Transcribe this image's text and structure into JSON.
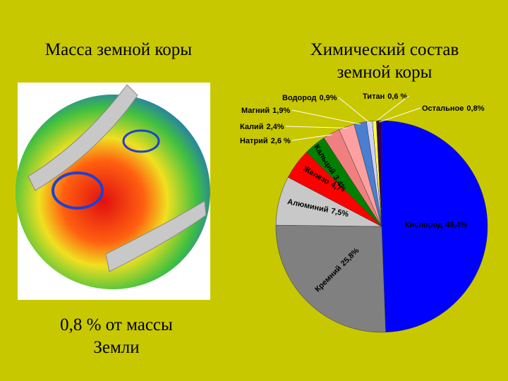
{
  "slide": {
    "left_title": "Масса земной коры",
    "caption_line1": "0,8 % от массы",
    "caption_line2": "Земли"
  },
  "chart_data": {
    "type": "pie",
    "title_line1": "Химический состав",
    "title_line2": "земной коры",
    "categories": [
      "Кислород",
      "Кремний",
      "Алюминий",
      "Железо",
      "Кальций",
      "Натрий",
      "Калий",
      "Магний",
      "Водород",
      "Титан",
      "Остальное"
    ],
    "values": [
      49.4,
      25.8,
      7.5,
      4.7,
      3.4,
      2.6,
      2.4,
      1.9,
      0.9,
      0.6,
      0.8
    ],
    "value_labels": [
      "49,4%",
      "25,8%",
      "7,5%",
      "4,7",
      "3,4%",
      "2,6 %",
      "2,4%",
      "1,9%",
      "0,9%",
      "0,6 %",
      "0,8%"
    ],
    "colors": [
      "#0000ff",
      "#808080",
      "#c8c8c8",
      "#ff0000",
      "#008000",
      "#f08080",
      "#ffa0a0",
      "#4a7fd0",
      "#d0d0ff",
      "#ffff40",
      "#300050"
    ]
  }
}
